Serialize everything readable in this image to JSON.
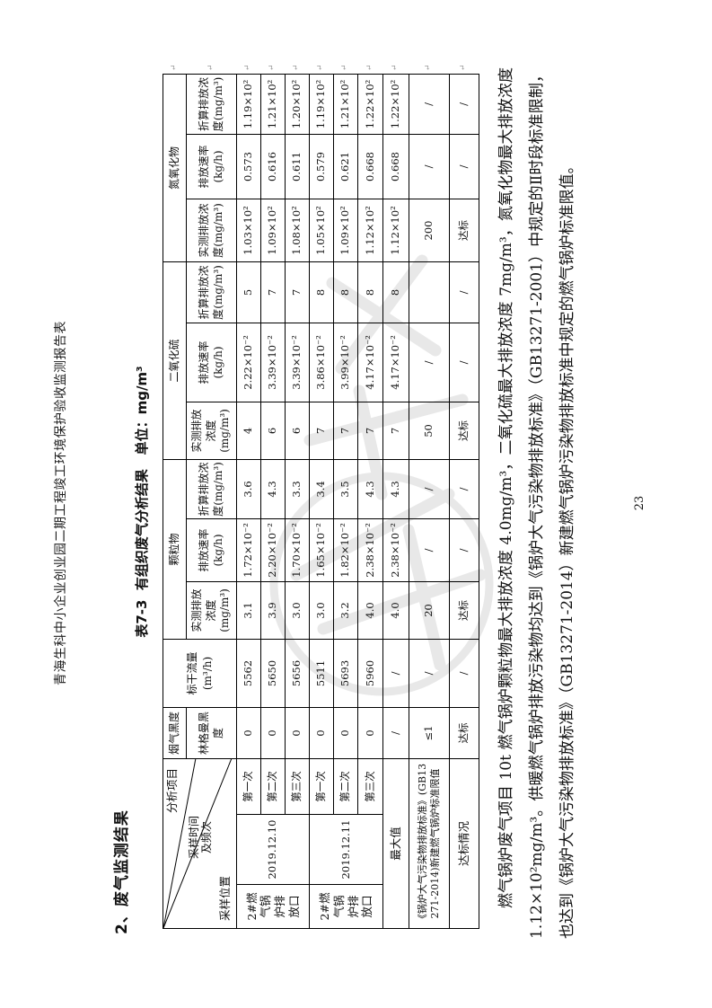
{
  "page_number": "23",
  "page_header": "青海生科中小企业创业园二期工程竣工环境保护验收监测报告表",
  "section_heading": "2、废气监测结果",
  "table": {
    "caption": "表7-3  有组织废气分析结果   单位：mg/m³",
    "corner": {
      "top_right": "分析项目",
      "middle": "采样时间及频次",
      "bottom_left": "采样位置"
    },
    "headers": {
      "smoke_group": "烟气黑度",
      "smoke_sub": "林格曼黑度",
      "flow": "标干流量(m³/h)",
      "pm_group": "颗粒物",
      "so2_group": "二氧化硫",
      "nox_group": "氮氧化物",
      "measured": "实测排放浓度(mg/m³)",
      "rate": "排放速率(kg/h)",
      "converted": "折算排放浓度(mg/m³)"
    },
    "rows": [
      {
        "pos": "2#燃气锅炉排放口",
        "date": "2019.12.10",
        "freq": "第一次",
        "smoke": "0",
        "flow": "5562",
        "pm": [
          "3.1",
          "1.72×10⁻²",
          "3.6"
        ],
        "so2": [
          "4",
          "2.22×10⁻²",
          "5"
        ],
        "nox": [
          "1.03×10²",
          "0.573",
          "1.19×10²"
        ]
      },
      {
        "freq": "第二次",
        "smoke": "0",
        "flow": "5650",
        "pm": [
          "3.9",
          "2.20×10⁻²",
          "4.3"
        ],
        "so2": [
          "6",
          "3.39×10⁻²",
          "7"
        ],
        "nox": [
          "1.09×10²",
          "0.616",
          "1.21×10²"
        ]
      },
      {
        "freq": "第三次",
        "smoke": "0",
        "flow": "5656",
        "pm": [
          "3.0",
          "1.70×10⁻²",
          "3.3"
        ],
        "so2": [
          "6",
          "3.39×10⁻²",
          "7"
        ],
        "nox": [
          "1.08×10²",
          "0.611",
          "1.20×10²"
        ]
      },
      {
        "pos": "2#燃气锅炉排放口",
        "date": "2019.12.11",
        "freq": "第一次",
        "smoke": "0",
        "flow": "5511",
        "pm": [
          "3.0",
          "1.65×10⁻²",
          "3.4"
        ],
        "so2": [
          "7",
          "3.86×10⁻²",
          "8"
        ],
        "nox": [
          "1.05×10²",
          "0.579",
          "1.19×10²"
        ]
      },
      {
        "freq": "第二次",
        "smoke": "0",
        "flow": "5693",
        "pm": [
          "3.2",
          "1.82×10⁻²",
          "3.5"
        ],
        "so2": [
          "7",
          "3.99×10⁻²",
          "8"
        ],
        "nox": [
          "1.09×10²",
          "0.621",
          "1.21×10²"
        ]
      },
      {
        "freq": "第三次",
        "smoke": "0",
        "flow": "5960",
        "pm": [
          "4.0",
          "2.38×10⁻²",
          "4.3"
        ],
        "so2": [
          "7",
          "4.17×10⁻²",
          "8"
        ],
        "nox": [
          "1.12×10²",
          "0.668",
          "1.22×10²"
        ]
      },
      {
        "label": "最大值",
        "smoke": "/",
        "flow": "/",
        "pm": [
          "4.0",
          "2.38×10⁻²",
          "4.3"
        ],
        "so2": [
          "7",
          "4.17×10⁻²",
          "8"
        ],
        "nox": [
          "1.12×10²",
          "0.668",
          "1.22×10²"
        ]
      },
      {
        "label": "《锅炉大气污染物排放标准》(GB13271-2014)新建燃气锅炉标准限值",
        "smoke": "≤1",
        "flow": "/",
        "pm": [
          "20",
          "/",
          "/"
        ],
        "so2": [
          "50",
          "/",
          ""
        ],
        "nox": [
          "200",
          "/",
          "/"
        ]
      },
      {
        "label": "达标情况",
        "smoke": "达标",
        "flow": "/",
        "pm": [
          "达标",
          "/",
          "/"
        ],
        "so2": [
          "达标",
          "/",
          "/"
        ],
        "nox": [
          "达标",
          "/",
          "/"
        ]
      }
    ]
  },
  "paragraph": "燃气锅炉废气项目 10t 燃气锅炉颗粒物最大排放浓度 4.0mg/m³，二氧化硫最大排放浓度 7mg/m³，氮氧化物最大排放浓度 1.12×10²mg/m³。供暖燃气锅炉排放污染物均达到《锅炉大气污染物排放标准》（GB13271-2001）中规定的Ⅱ时段标准限制，也达到《锅炉大气污染物排放标准》（GB13271-2014）新建燃气锅炉污染物排放标准中规定的燃气锅炉标准限值。",
  "artifacts": {
    "row_end_mark": "↵"
  }
}
